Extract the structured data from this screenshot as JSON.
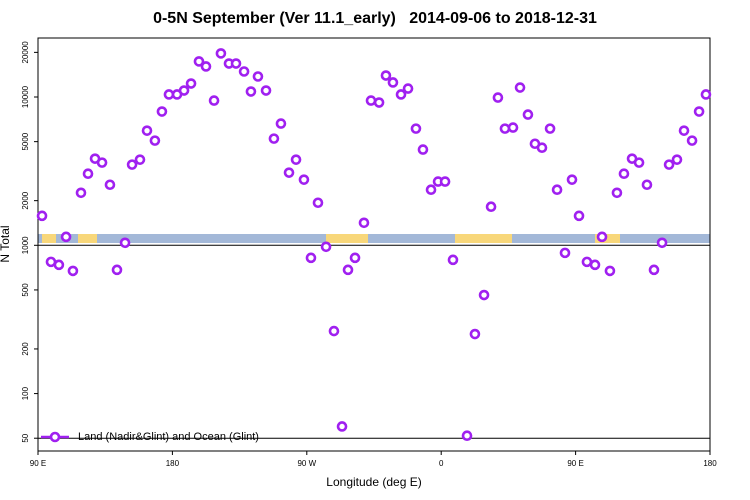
{
  "chart_data": {
    "type": "scatter",
    "title": "0-5N September (Ver 11.1_early)   2014-09-06 to 2018-12-31",
    "x_label": "Longitude (deg E)",
    "y_label": "N Total",
    "log_y": true,
    "legend": "bottom left",
    "xlim": [
      90,
      540
    ],
    "ylim": [
      41,
      25000
    ],
    "xticks": [
      {
        "value": 90,
        "label": "90 E"
      },
      180,
      {
        "value": 270,
        "label": "90 W"
      },
      {
        "value": 360,
        "label": "0"
      },
      {
        "value": 450,
        "label": "90 E"
      },
      {
        "value": 540,
        "label": "180"
      }
    ],
    "yticks": [
      50,
      100,
      200,
      500,
      1000,
      2000,
      5000,
      10000,
      20000
    ],
    "reference_lines": [
      50,
      1000
    ],
    "series": [
      {
        "name": "Land (Nadir&Glint) and Ocean (Glint)",
        "color": "#a020f0",
        "x": [
          92.7,
          98.7,
          104,
          108.8,
          113.4,
          118.8,
          123.5,
          128.2,
          132.9,
          138.2,
          142.9,
          148.3,
          153,
          158.3,
          163,
          168.3,
          173,
          177.7,
          183.1,
          187.8,
          192.5,
          197.8,
          202.5,
          207.9,
          212.5,
          217.9,
          222.6,
          228,
          232.6,
          237.3,
          242.7,
          248,
          252.7,
          258.1,
          262.8,
          268.1,
          272.8,
          277.5,
          282.9,
          288.2,
          293.6,
          297.6,
          302.3,
          308.3,
          313,
          318.4,
          323,
          327.7,
          333.1,
          337.8,
          343.1,
          347.8,
          353.2,
          357.9,
          362.6,
          367.9,
          377.3,
          382.6,
          388.7,
          393.4,
          398,
          402.7,
          408.1,
          412.8,
          418.1,
          422.8,
          427.5,
          432.9,
          437.6,
          442.9,
          447.6,
          452.3,
          457.6,
          463,
          467.7,
          473,
          477.7,
          482.4,
          487.8,
          492.5,
          497.8,
          502.5,
          507.9,
          512.6,
          517.9,
          522.6,
          528,
          532.7,
          537.3
        ],
        "values": [
          1580,
          773,
          738,
          1140,
          672,
          2260,
          3040,
          3840,
          3610,
          2560,
          683,
          1040,
          3500,
          3780,
          5930,
          5080,
          7980,
          10400,
          10400,
          11060,
          12330,
          17380,
          16070,
          9460,
          19680,
          16820,
          16820,
          14860,
          10890,
          13750,
          11060,
          5240,
          6620,
          3090,
          3780,
          2770,
          823,
          1936,
          977,
          264,
          60,
          683,
          823,
          1418,
          9460,
          9180,
          13960,
          12530,
          10400,
          11400,
          6120,
          4420,
          2370,
          2690,
          2690,
          798,
          52,
          252,
          462,
          1820,
          9910,
          6120,
          6220,
          11580,
          7610,
          4840,
          4550,
          6120,
          2370,
          889,
          2770,
          1580,
          773,
          738,
          1140,
          672,
          2260,
          3040,
          3840,
          3610,
          2560,
          683,
          1040,
          3500,
          3780,
          5930,
          5080,
          7980,
          10400
        ]
      }
    ]
  }
}
